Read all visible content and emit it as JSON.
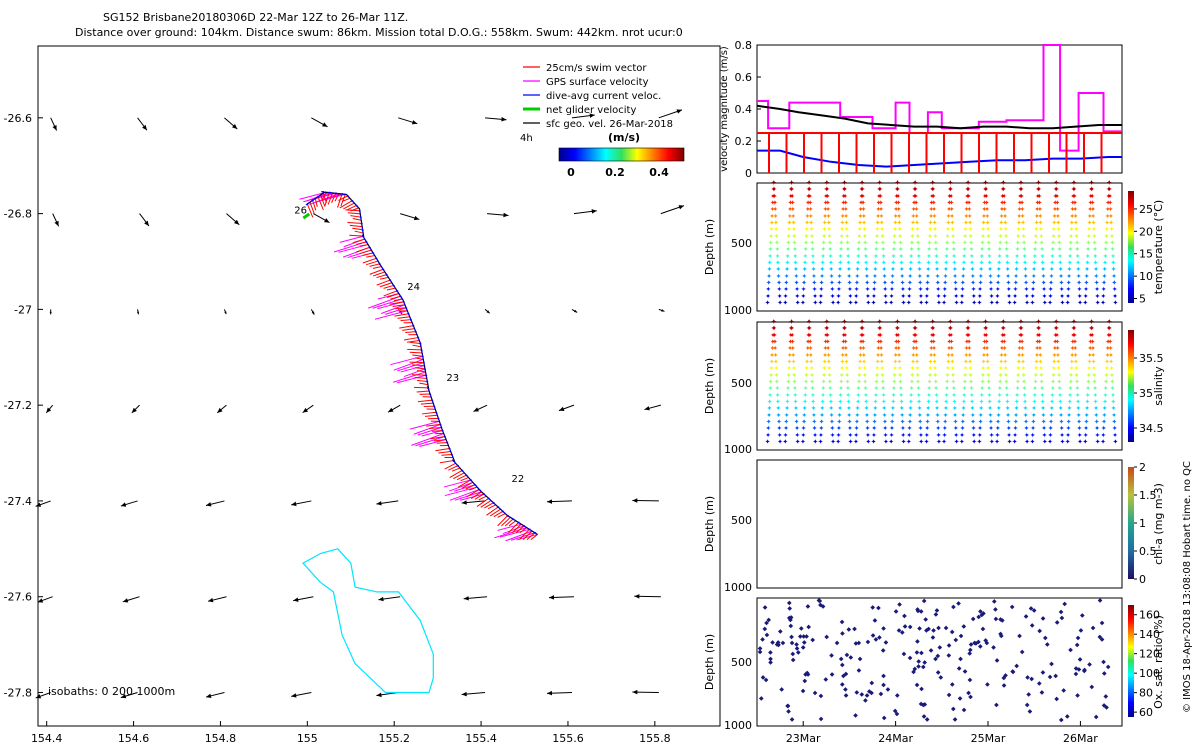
{
  "header": {
    "line1": "SG152 Brisbane20180306D 22-Mar 12Z to 26-Mar 11Z.",
    "line2": "Distance over ground: 104km. Distance swum: 86km. Mission total D.O.G.: 558km. Swum: 442km. nrot ucur:0"
  },
  "footer_text": "© IMOS 18-Apr-2018 13:08:08 Hobart time. no QC",
  "colors": {
    "swim_vector": "#ff0000",
    "gps_surface_velocity": "#ff00ff",
    "dive_avg_current": "#0000ff",
    "net_glider_velocity": "#00cc00",
    "sfc_geo_velocity": "#000000",
    "isobath": "#00e5ff"
  },
  "chart_data": [
    {
      "type": "scatter",
      "panel": "map",
      "legend": [
        {
          "label": "25cm/s swim vector",
          "color": "#ff0000"
        },
        {
          "label": "GPS surface velocity",
          "color": "#ff00ff"
        },
        {
          "label": "dive-avg current veloc.",
          "color": "#0000ff"
        },
        {
          "label": "net glider velocity",
          "color": "#00cc00"
        },
        {
          "label": "sfc geo. vel. 26-Mar-2018",
          "color": "#000000"
        }
      ],
      "speed_scale_label": "4h",
      "colorbar": {
        "title": "(m/s)",
        "ticks": [
          "0",
          "0.2",
          "0.4"
        ],
        "range": [
          0,
          0.5
        ]
      },
      "xlim": [
        154.38,
        155.95
      ],
      "ylim": [
        -27.87,
        -26.45
      ],
      "xticks": [
        "154.4",
        "154.6",
        "154.8",
        "155",
        "155.2",
        "155.4",
        "155.6",
        "155.8"
      ],
      "yticks": [
        "-26.6",
        "-26.8",
        "-27",
        "-27.2",
        "-27.4",
        "-27.6",
        "-27.8"
      ],
      "track": [
        {
          "lon": 155.53,
          "lat": -27.47
        },
        {
          "lon": 155.46,
          "lat": -27.43
        },
        {
          "lon": 155.4,
          "lat": -27.38
        },
        {
          "lon": 155.34,
          "lat": -27.32
        },
        {
          "lon": 155.31,
          "lat": -27.25
        },
        {
          "lon": 155.28,
          "lat": -27.17
        },
        {
          "lon": 155.26,
          "lat": -27.07
        },
        {
          "lon": 155.22,
          "lat": -26.98
        },
        {
          "lon": 155.17,
          "lat": -26.91
        },
        {
          "lon": 155.13,
          "lat": -26.85
        },
        {
          "lon": 155.12,
          "lat": -26.79
        },
        {
          "lon": 155.09,
          "lat": -26.76
        },
        {
          "lon": 155.04,
          "lat": -26.755
        },
        {
          "lon": 155.0,
          "lat": -26.78
        }
      ],
      "day_labels": [
        {
          "text": "22",
          "lon": 155.47,
          "lat": -27.36
        },
        {
          "text": "23",
          "lon": 155.32,
          "lat": -27.15
        },
        {
          "text": "24",
          "lon": 155.23,
          "lat": -26.96
        },
        {
          "text": "26",
          "lon": 154.97,
          "lat": -26.8
        }
      ],
      "isobath_label": "isobaths: 0   200   1000m",
      "isobath_1000m": [
        {
          "lon": 155.03,
          "lat": -27.51
        },
        {
          "lon": 155.07,
          "lat": -27.5
        },
        {
          "lon": 155.1,
          "lat": -27.53
        },
        {
          "lon": 155.11,
          "lat": -27.58
        },
        {
          "lon": 155.16,
          "lat": -27.59
        },
        {
          "lon": 155.21,
          "lat": -27.59
        },
        {
          "lon": 155.26,
          "lat": -27.65
        },
        {
          "lon": 155.29,
          "lat": -27.72
        },
        {
          "lon": 155.29,
          "lat": -27.77
        },
        {
          "lon": 155.28,
          "lat": -27.8
        },
        {
          "lon": 155.18,
          "lat": -27.8
        },
        {
          "lon": 155.11,
          "lat": -27.74
        },
        {
          "lon": 155.08,
          "lat": -27.68
        },
        {
          "lon": 155.06,
          "lat": -27.59
        },
        {
          "lon": 155.03,
          "lat": -27.57
        },
        {
          "lon": 154.99,
          "lat": -27.53
        },
        {
          "lon": 155.03,
          "lat": -27.51
        }
      ]
    },
    {
      "type": "line",
      "panel": "velocity",
      "ylabel": "velocity magnitude (m/s)",
      "ylim": [
        0,
        0.8
      ],
      "yticks": [
        "0",
        "0.2",
        "0.4",
        "0.6",
        "0.8"
      ],
      "x_days": [
        22.5,
        26.45
      ],
      "series": [
        {
          "color": "#ff00ff",
          "x": [
            22.5,
            22.62,
            22.62,
            22.85,
            22.85,
            23.4,
            23.4,
            23.75,
            23.75,
            24.0,
            24.0,
            24.15,
            24.15,
            24.35,
            24.35,
            24.5,
            24.5,
            24.9,
            24.9,
            25.2,
            25.2,
            25.6,
            25.6,
            25.78,
            25.78,
            25.98,
            25.98,
            26.25,
            26.25,
            26.45
          ],
          "y": [
            0.45,
            0.45,
            0.28,
            0.28,
            0.44,
            0.44,
            0.35,
            0.35,
            0.28,
            0.28,
            0.44,
            0.44,
            0.25,
            0.25,
            0.38,
            0.38,
            0.28,
            0.28,
            0.32,
            0.32,
            0.33,
            0.33,
            0.8,
            0.8,
            0.14,
            0.14,
            0.5,
            0.5,
            0.26,
            0.26
          ]
        },
        {
          "color": "#000000",
          "x": [
            22.5,
            22.75,
            22.95,
            23.2,
            23.45,
            23.7,
            23.95,
            24.2,
            24.45,
            24.7,
            24.95,
            25.2,
            25.45,
            25.7,
            25.95,
            26.2,
            26.45
          ],
          "y": [
            0.42,
            0.4,
            0.38,
            0.36,
            0.34,
            0.31,
            0.3,
            0.29,
            0.29,
            0.28,
            0.29,
            0.29,
            0.28,
            0.28,
            0.29,
            0.3,
            0.3
          ]
        },
        {
          "color": "#ff0000",
          "x": [
            22.5,
            23.0,
            23.5,
            24.0,
            24.5,
            25.0,
            25.5,
            26.0,
            26.45
          ],
          "y": [
            0.25,
            0.25,
            0.25,
            0.25,
            0.25,
            0.25,
            0.25,
            0.25,
            0.25
          ]
        },
        {
          "color": "#0000ff",
          "x": [
            22.5,
            22.75,
            23.0,
            23.3,
            23.6,
            23.9,
            24.2,
            24.5,
            24.8,
            25.1,
            25.4,
            25.7,
            26.0,
            26.3,
            26.45
          ],
          "y": [
            0.14,
            0.14,
            0.1,
            0.07,
            0.05,
            0.04,
            0.05,
            0.06,
            0.07,
            0.08,
            0.08,
            0.09,
            0.09,
            0.1,
            0.1
          ]
        }
      ]
    },
    {
      "type": "scatter",
      "panel": "temperature",
      "ylabel": "Depth (m)",
      "colorbar_label": "temperature (°C)",
      "colorbar_ticks": [
        "5",
        "10",
        "15",
        "20",
        "25"
      ],
      "colorbar_range": [
        4,
        29
      ],
      "ylim": [
        1000,
        0
      ],
      "yticks": [
        "500",
        "1000"
      ],
      "profiles": 20,
      "max_depth_m": 950
    },
    {
      "type": "scatter",
      "panel": "salinity",
      "ylabel": "Depth (m)",
      "colorbar_label": "salinity",
      "colorbar_ticks": [
        "34.5",
        "35",
        "35.5"
      ],
      "colorbar_range": [
        34.3,
        35.9
      ],
      "ylim": [
        1000,
        0
      ],
      "yticks": [
        "500",
        "1000"
      ],
      "profiles": 20,
      "max_depth_m": 950
    },
    {
      "type": "scatter",
      "panel": "chlorophyll",
      "ylabel": "Depth (m)",
      "colorbar_label": "chl-a (mg m-3)",
      "colorbar_ticks": [
        "0",
        "0.5",
        "1",
        "1.5",
        "2"
      ],
      "colorbar_range": [
        0,
        2
      ],
      "ylim": [
        1000,
        0
      ],
      "yticks": [
        "500",
        "1000"
      ]
    },
    {
      "type": "scatter",
      "panel": "oxygen",
      "ylabel": "Depth (m)",
      "colorbar_label": "Ox. sat. ratio (%)",
      "colorbar_ticks": [
        "60",
        "80",
        "100",
        "120",
        "140",
        "160"
      ],
      "colorbar_range": [
        55,
        170
      ],
      "ylim": [
        1000,
        0
      ],
      "yticks": [
        "500",
        "1000"
      ],
      "xticks": [
        "23Mar",
        "24Mar",
        "25Mar",
        "26Mar"
      ],
      "xtick_days": [
        23,
        24,
        25,
        26
      ]
    }
  ]
}
